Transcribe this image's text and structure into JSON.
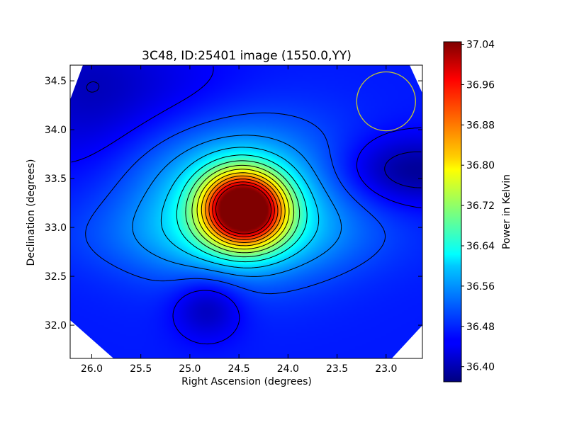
{
  "chart_data": {
    "type": "heatmap",
    "title": "3C48, ID:25401 image (1550.0,YY)",
    "xlabel": "Right Ascension (degrees)",
    "ylabel": "Declination (degrees)",
    "xlim": [
      26.22,
      22.63
    ],
    "ylim": [
      31.66,
      34.66
    ],
    "x_ticks": [
      26.0,
      25.5,
      25.0,
      24.5,
      24.0,
      23.5,
      23.0
    ],
    "x_tick_labels": [
      "26.0",
      "25.5",
      "25.0",
      "24.5",
      "24.0",
      "23.5",
      "23.0"
    ],
    "y_ticks": [
      32.0,
      32.5,
      33.0,
      33.5,
      34.0,
      34.5
    ],
    "y_tick_labels": [
      "32.0",
      "32.5",
      "33.0",
      "33.5",
      "34.0",
      "34.5"
    ],
    "colorbar": {
      "label": "Power in Kelvin",
      "colormap": "jet",
      "range": [
        36.37,
        37.045
      ],
      "ticks": [
        36.4,
        36.48,
        36.56,
        36.64,
        36.72,
        36.8,
        36.88,
        36.96,
        37.04
      ],
      "tick_labels": [
        "36.40",
        "36.48",
        "36.56",
        "36.64",
        "36.72",
        "36.80",
        "36.88",
        "36.96",
        "37.04"
      ]
    },
    "peak": {
      "ra": 24.45,
      "dec": 33.19,
      "value": 37.04
    },
    "minima": [
      {
        "ra": 24.82,
        "dec": 32.18,
        "value": 36.38
      },
      {
        "ra": 22.75,
        "dec": 33.58,
        "value": 36.37
      }
    ],
    "marker_circle": {
      "ra": 23.0,
      "dec": 34.29,
      "radius_deg": 0.3,
      "color": "#c8c830"
    },
    "contours": "black lines at evenly spaced power levels",
    "grid": false
  }
}
